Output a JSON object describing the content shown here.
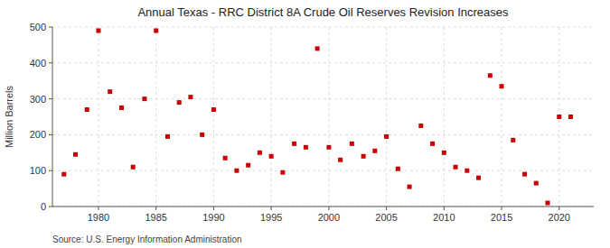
{
  "chart_data": {
    "type": "scatter",
    "title": "Annual Texas - RRC District 8A Crude Oil Reserves Revision Increases",
    "ylabel": "Million Barrels",
    "annotations": [
      "Source: U.S. Energy Information Administration"
    ],
    "color": "#cc0000",
    "marker": "square",
    "grid": true,
    "xlim": [
      1976,
      2023
    ],
    "ylim": [
      0,
      500
    ],
    "xticks": [
      1980,
      1985,
      1990,
      1995,
      2000,
      2005,
      2010,
      2015,
      2020
    ],
    "yticks": [
      0,
      100,
      200,
      300,
      400,
      500
    ],
    "x": [
      1977,
      1978,
      1979,
      1980,
      1981,
      1982,
      1983,
      1984,
      1985,
      1986,
      1987,
      1988,
      1989,
      1990,
      1991,
      1992,
      1993,
      1994,
      1995,
      1996,
      1997,
      1998,
      1999,
      2000,
      2001,
      2002,
      2003,
      2004,
      2005,
      2006,
      2007,
      2008,
      2009,
      2010,
      2011,
      2012,
      2013,
      2014,
      2015,
      2016,
      2017,
      2018,
      2019,
      2020,
      2021
    ],
    "values": [
      90,
      145,
      270,
      490,
      320,
      275,
      110,
      300,
      490,
      195,
      290,
      305,
      200,
      270,
      135,
      100,
      115,
      150,
      140,
      95,
      175,
      165,
      440,
      165,
      130,
      175,
      140,
      155,
      195,
      105,
      55,
      225,
      175,
      150,
      110,
      100,
      80,
      365,
      335,
      185,
      90,
      65,
      10,
      250,
      250
    ]
  }
}
